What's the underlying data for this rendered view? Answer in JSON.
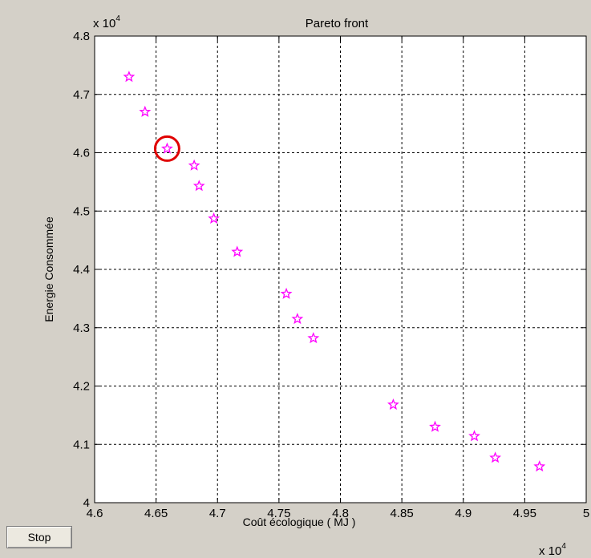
{
  "chart_data": {
    "type": "scatter",
    "title": "Pareto front",
    "xlabel": "Coût écologique ( MJ )",
    "ylabel": "Energie Consommée",
    "xlim": [
      46000,
      50000
    ],
    "ylim": [
      40000,
      48000
    ],
    "x_ticks": [
      46000,
      46500,
      47000,
      47500,
      48000,
      48500,
      49000,
      49500,
      50000
    ],
    "y_ticks": [
      40000,
      41000,
      42000,
      43000,
      44000,
      45000,
      46000,
      47000,
      48000
    ],
    "x_tick_labels": [
      "4.6",
      "4.65",
      "4.7",
      "4.75",
      "4.8",
      "4.85",
      "4.9",
      "4.95",
      "5"
    ],
    "y_tick_labels": [
      "4",
      "4.1",
      "4.2",
      "4.3",
      "4.4",
      "4.5",
      "4.6",
      "4.7",
      "4.8"
    ],
    "x_multiplier": "x 10",
    "y_multiplier": "x 10",
    "multiplier_exponent": "4",
    "grid": true,
    "marker": "star",
    "marker_color": "#ff00ff",
    "highlight_color": "#e00000",
    "highlighted_index": 2,
    "points": [
      {
        "x": 46280,
        "y": 47300
      },
      {
        "x": 46410,
        "y": 46700
      },
      {
        "x": 46590,
        "y": 46070
      },
      {
        "x": 46810,
        "y": 45780
      },
      {
        "x": 46850,
        "y": 45430
      },
      {
        "x": 46970,
        "y": 44870
      },
      {
        "x": 47160,
        "y": 44300
      },
      {
        "x": 47560,
        "y": 43580
      },
      {
        "x": 47650,
        "y": 43150
      },
      {
        "x": 47780,
        "y": 42820
      },
      {
        "x": 48430,
        "y": 41680
      },
      {
        "x": 48770,
        "y": 41300
      },
      {
        "x": 49090,
        "y": 41140
      },
      {
        "x": 49260,
        "y": 40770
      },
      {
        "x": 49620,
        "y": 40620
      }
    ]
  },
  "controls": {
    "stop_label": "Stop"
  }
}
